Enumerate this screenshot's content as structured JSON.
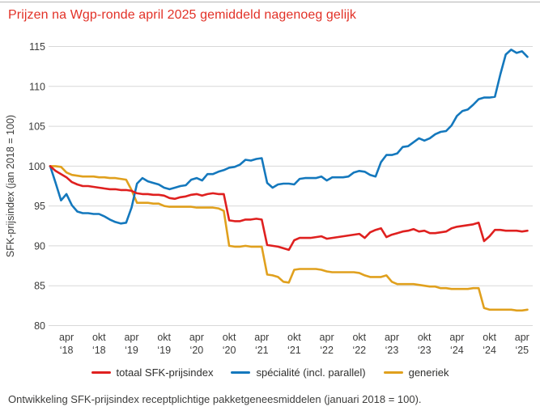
{
  "title": "Prijzen na Wgp-ronde april 2025 gemiddeld nagenoeg gelijk",
  "caption": "Ontwikkeling SFK-prijsindex receptplichtige pakketgeneesmiddelen (januari 2018 = 100).",
  "colors": {
    "title": "#e23127",
    "red_line": "#df201f",
    "blue_line": "#1478bd",
    "yellow_line": "#e0a01d",
    "grid": "#d8d8d8",
    "axis_text": "#3c3c3b",
    "top_rule": "#b5b5b5"
  },
  "chart_data": {
    "type": "line",
    "title": "Prijzen na Wgp-ronde april 2025 gemiddeld nagenoeg gelijk",
    "xlabel": "",
    "ylabel": "SFK-prijsindex (jan 2018 = 100)",
    "ylim": [
      80,
      115
    ],
    "y_ticks": [
      80,
      85,
      90,
      95,
      100,
      105,
      110,
      115
    ],
    "grid": true,
    "legend_position": "bottom",
    "x_unit": "month",
    "x_range": "jan 2018 - may 2025",
    "x_ticks": [
      {
        "index": 3,
        "line1": "apr",
        "line2": "‘18"
      },
      {
        "index": 9,
        "line1": "okt",
        "line2": "‘18"
      },
      {
        "index": 15,
        "line1": "apr",
        "line2": "‘19"
      },
      {
        "index": 21,
        "line1": "okt",
        "line2": "‘19"
      },
      {
        "index": 27,
        "line1": "apr",
        "line2": "‘20"
      },
      {
        "index": 33,
        "line1": "okt",
        "line2": "‘20"
      },
      {
        "index": 39,
        "line1": "apr",
        "line2": "‘21"
      },
      {
        "index": 45,
        "line1": "okt",
        "line2": "‘21"
      },
      {
        "index": 51,
        "line1": "apr",
        "line2": "‘22"
      },
      {
        "index": 57,
        "line1": "okt",
        "line2": "‘22"
      },
      {
        "index": 63,
        "line1": "apr",
        "line2": "‘23"
      },
      {
        "index": 69,
        "line1": "okt",
        "line2": "‘23"
      },
      {
        "index": 75,
        "line1": "apr",
        "line2": "‘24"
      },
      {
        "index": 81,
        "line1": "okt",
        "line2": "‘24"
      },
      {
        "index": 87,
        "line1": "apr",
        "line2": "‘25"
      }
    ],
    "series": [
      {
        "name": "totaal SFK-prijsindex",
        "color": "#df201f",
        "values": [
          100.0,
          99.4,
          99.0,
          98.6,
          98.0,
          97.7,
          97.5,
          97.5,
          97.4,
          97.3,
          97.2,
          97.1,
          97.1,
          97.0,
          97.0,
          96.9,
          96.6,
          96.5,
          96.5,
          96.4,
          96.4,
          96.3,
          96.0,
          95.9,
          96.1,
          96.2,
          96.4,
          96.5,
          96.3,
          96.5,
          96.6,
          96.5,
          96.5,
          93.2,
          93.1,
          93.1,
          93.3,
          93.3,
          93.4,
          93.3,
          90.1,
          90.0,
          89.9,
          89.7,
          89.5,
          90.7,
          91.0,
          91.0,
          91.0,
          91.1,
          91.2,
          90.9,
          91.0,
          91.1,
          91.2,
          91.3,
          91.4,
          91.5,
          91.0,
          91.7,
          92.0,
          92.2,
          91.1,
          91.4,
          91.6,
          91.8,
          91.9,
          92.1,
          91.8,
          91.9,
          91.6,
          91.6,
          91.7,
          91.8,
          92.2,
          92.4,
          92.5,
          92.6,
          92.7,
          92.9,
          90.6,
          91.2,
          92.0,
          92.0,
          91.9,
          91.9,
          91.9,
          91.8,
          91.9
        ]
      },
      {
        "name": "spécialité (incl. parallel)",
        "color": "#1478bd",
        "values": [
          100.0,
          97.9,
          95.7,
          96.5,
          95.1,
          94.3,
          94.1,
          94.1,
          94.0,
          94.0,
          93.7,
          93.3,
          93.0,
          92.8,
          92.9,
          94.8,
          97.8,
          98.5,
          98.1,
          97.9,
          97.7,
          97.3,
          97.1,
          97.3,
          97.5,
          97.6,
          98.3,
          98.5,
          98.2,
          99.0,
          99.0,
          99.3,
          99.5,
          99.8,
          99.9,
          100.2,
          100.8,
          100.7,
          100.9,
          101.0,
          97.9,
          97.3,
          97.7,
          97.8,
          97.8,
          97.7,
          98.4,
          98.5,
          98.5,
          98.5,
          98.7,
          98.2,
          98.6,
          98.6,
          98.6,
          98.7,
          99.2,
          99.4,
          99.3,
          98.9,
          98.7,
          100.5,
          101.4,
          101.4,
          101.6,
          102.4,
          102.5,
          103.0,
          103.5,
          103.2,
          103.5,
          104.0,
          104.3,
          104.4,
          105.1,
          106.3,
          106.9,
          107.1,
          107.7,
          108.4,
          108.6,
          108.6,
          108.7,
          111.5,
          114.0,
          114.6,
          114.2,
          114.4,
          113.7
        ]
      },
      {
        "name": "generiek",
        "color": "#e0a01d",
        "values": [
          100.0,
          100.0,
          99.9,
          99.2,
          98.9,
          98.8,
          98.7,
          98.7,
          98.7,
          98.6,
          98.6,
          98.5,
          98.5,
          98.4,
          98.3,
          97.0,
          95.4,
          95.4,
          95.4,
          95.3,
          95.3,
          95.0,
          94.9,
          94.9,
          94.9,
          94.9,
          94.9,
          94.8,
          94.8,
          94.8,
          94.8,
          94.7,
          94.4,
          90.0,
          89.9,
          89.9,
          90.0,
          89.9,
          89.9,
          89.9,
          86.4,
          86.3,
          86.1,
          85.5,
          85.4,
          87.0,
          87.1,
          87.1,
          87.1,
          87.1,
          87.0,
          86.8,
          86.7,
          86.7,
          86.7,
          86.7,
          86.7,
          86.6,
          86.3,
          86.1,
          86.1,
          86.1,
          86.3,
          85.5,
          85.2,
          85.2,
          85.2,
          85.2,
          85.1,
          85.0,
          84.9,
          84.9,
          84.7,
          84.7,
          84.6,
          84.6,
          84.6,
          84.6,
          84.7,
          84.7,
          82.2,
          82.0,
          82.0,
          82.0,
          82.0,
          82.0,
          81.9,
          81.9,
          82.0
        ]
      }
    ]
  }
}
